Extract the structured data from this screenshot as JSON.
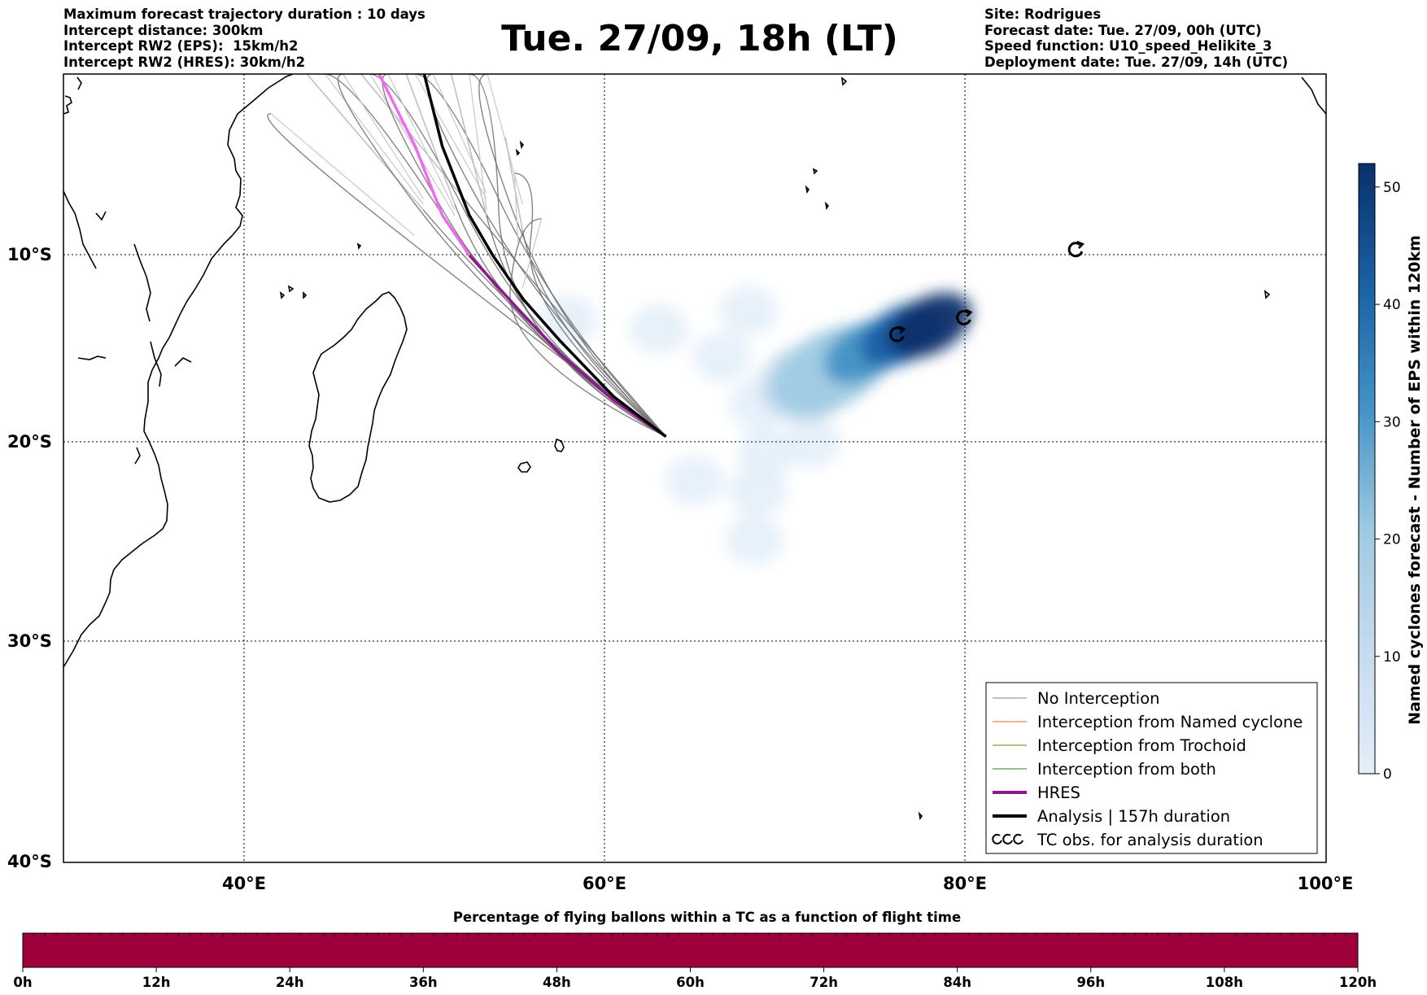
{
  "header": {
    "left_lines": [
      "Maximum forecast trajectory duration : 10 days",
      "Intercept distance: 300km",
      "Intercept RW2 (EPS):  15km/h2",
      "Intercept RW2 (HRES): 30km/h2"
    ],
    "right_lines": [
      "Site: Rodrigues",
      "Forecast date: Tue. 27/09, 00h (UTC)",
      "Speed function: U10_speed_Helikite_3",
      "Deployment date: Tue. 27/09, 14h (UTC)"
    ],
    "title": "Tue. 27/09, 18h (LT)"
  },
  "map": {
    "lon_range": [
      30,
      100
    ],
    "lat_range": [
      -40,
      0
    ],
    "lat_labels": [
      "10°S",
      "20°S",
      "30°S",
      "40°S"
    ],
    "lon_labels": [
      "40°E",
      "60°E",
      "80°E",
      "100°E"
    ],
    "colors": {
      "coast": "#000000",
      "ensemble_track": "#6e6e6e",
      "ensemble_track_light": "#c8c8c8",
      "hres": "#8b1a8b",
      "hres_light": "#ee6aee",
      "analysis": "#000000"
    }
  },
  "density_colorbar": {
    "title": "Named cyclones forecast - Number of EPS within 120km",
    "ticks": [
      "0",
      "10",
      "20",
      "30",
      "40",
      "50"
    ],
    "range": [
      0,
      52
    ],
    "colors": [
      "#e3eef9",
      "#b7d4ea",
      "#6aaed6",
      "#2e7ebc",
      "#08468b",
      "#08306b"
    ]
  },
  "legend": {
    "items": [
      {
        "label": "No Interception",
        "color": "#808080",
        "width": 1
      },
      {
        "label": "Interception from Named cyclone",
        "color": "#e8641e",
        "width": 1
      },
      {
        "label": "Interception from Trochoid",
        "color": "#7f7f00",
        "width": 1
      },
      {
        "label": "Interception from both",
        "color": "#1a8c1a",
        "width": 1
      },
      {
        "label": "HRES",
        "color": "#8b1a8b",
        "width": 4
      },
      {
        "label": "Analysis | 157h duration",
        "color": "#000000",
        "width": 4
      },
      {
        "label": "TC obs. for analysis duration",
        "color": "#000000",
        "width": 0,
        "icon": "cyclone-symbols"
      }
    ]
  },
  "flight_bar": {
    "title": "Percentage of flying ballons within a TC as a function of flight time",
    "color": "#9f003c",
    "ticks": [
      "0h",
      "12h",
      "24h",
      "36h",
      "48h",
      "60h",
      "72h",
      "84h",
      "96h",
      "108h",
      "120h"
    ]
  },
  "chart_data": {
    "type": "heatmap",
    "title": "Tue. 27/09, 18h (LT)",
    "xlabel": "",
    "ylabel": "",
    "xlim": [
      30,
      100
    ],
    "ylim": [
      -40,
      0
    ],
    "launch_point": {
      "lon": 63.4,
      "lat": -19.7
    },
    "analysis_track": [
      [
        63.4,
        -19.7
      ],
      [
        60.5,
        -17.6
      ],
      [
        57.5,
        -14.6
      ],
      [
        55.5,
        -12.4
      ],
      [
        53.8,
        -10.0
      ],
      [
        52.5,
        -7.8
      ],
      [
        51.0,
        -4.0
      ],
      [
        50.0,
        0.0
      ]
    ],
    "hres_track": [
      [
        63.4,
        -19.7
      ],
      [
        60.5,
        -17.8
      ],
      [
        57.5,
        -15.3
      ],
      [
        55.0,
        -12.7
      ],
      [
        52.5,
        -10.0
      ],
      [
        51.0,
        -7.8
      ],
      [
        49.5,
        -4.0
      ],
      [
        47.5,
        0.0
      ]
    ],
    "ensemble_track_endpoints": [
      [
        41.5,
        -2.2
      ],
      [
        43.5,
        0
      ],
      [
        44.5,
        0
      ],
      [
        45.5,
        0
      ],
      [
        46.5,
        0
      ],
      [
        47.0,
        0
      ],
      [
        48.0,
        0
      ],
      [
        49.0,
        0
      ],
      [
        49.5,
        0
      ],
      [
        50.5,
        0
      ],
      [
        51.5,
        0
      ],
      [
        52.5,
        0
      ],
      [
        53.5,
        0
      ],
      [
        54.5,
        -3.5
      ],
      [
        55.0,
        -5.5
      ],
      [
        56.5,
        -8.0
      ]
    ],
    "density_blobs": [
      {
        "lon": 78.0,
        "lat": -13.8,
        "value": 52
      },
      {
        "lon": 76.5,
        "lat": -14.3,
        "value": 45
      },
      {
        "lon": 74.5,
        "lat": -15.2,
        "value": 35
      },
      {
        "lon": 72.5,
        "lat": -16.2,
        "value": 22
      },
      {
        "lon": 71.0,
        "lat": -17.0,
        "value": 12
      },
      {
        "lon": 66.5,
        "lat": -15.5,
        "value": 3
      },
      {
        "lon": 63.0,
        "lat": -14.0,
        "value": 2
      },
      {
        "lon": 68.0,
        "lat": -13.0,
        "value": 2
      },
      {
        "lon": 68.5,
        "lat": -18.0,
        "value": 2
      },
      {
        "lon": 71.5,
        "lat": -20.0,
        "value": 3
      },
      {
        "lon": 69.0,
        "lat": -20.5,
        "value": 2
      },
      {
        "lon": 65.0,
        "lat": -22.0,
        "value": 2
      },
      {
        "lon": 68.5,
        "lat": -22.5,
        "value": 2
      },
      {
        "lon": 68.3,
        "lat": -25.0,
        "value": 2
      },
      {
        "lon": 58.0,
        "lat": -13.5,
        "value": 2
      }
    ],
    "tc_obs": [
      {
        "lon": 86.1,
        "lat": -9.7
      },
      {
        "lon": 79.9,
        "lat": -13.4
      },
      {
        "lon": 76.2,
        "lat": -14.3
      }
    ],
    "flight_bar_range": [
      0,
      120
    ]
  }
}
